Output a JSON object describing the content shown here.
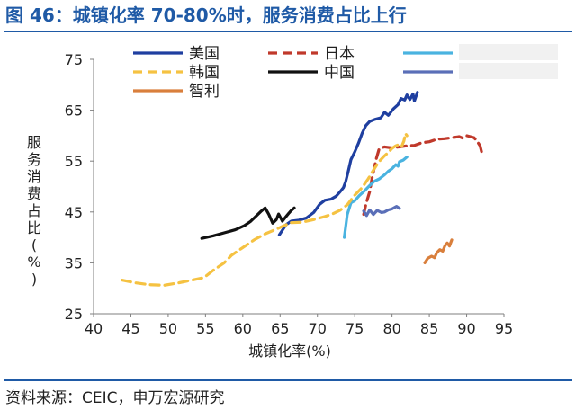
{
  "header": {
    "title": "图 46：城镇化率 70-80%时，服务消费占比上行"
  },
  "footer": {
    "source": "资料来源：CEIC，申万宏源研究"
  },
  "chart_data": {
    "type": "line",
    "xlabel": "城镇化率(%)",
    "ylabel": "服务消费占比(%)",
    "xlim": [
      40,
      95
    ],
    "ylim": [
      25,
      75
    ],
    "xticks": [
      40,
      45,
      50,
      55,
      60,
      65,
      70,
      75,
      80,
      85,
      90,
      95
    ],
    "yticks": [
      25,
      35,
      45,
      55,
      65,
      75
    ],
    "grid": false,
    "legend_position": "top",
    "series": [
      {
        "name": "美国",
        "color": "#1f3fa0",
        "dash": "solid",
        "points": [
          [
            64.9,
            40.5
          ],
          [
            65.8,
            42.5
          ],
          [
            66.5,
            43.2
          ],
          [
            67.5,
            43.4
          ],
          [
            68.5,
            43.8
          ],
          [
            69.5,
            44.9
          ],
          [
            70.3,
            46.5
          ],
          [
            71.0,
            47.3
          ],
          [
            71.8,
            47.5
          ],
          [
            72.5,
            48.1
          ],
          [
            73.0,
            48.9
          ],
          [
            73.5,
            49.8
          ],
          [
            73.8,
            51.0
          ],
          [
            74.1,
            52.8
          ],
          [
            74.5,
            55.3
          ],
          [
            75.0,
            56.8
          ],
          [
            75.5,
            58.5
          ],
          [
            76.0,
            60.5
          ],
          [
            76.5,
            62.0
          ],
          [
            77.0,
            62.8
          ],
          [
            77.7,
            63.2
          ],
          [
            78.5,
            63.5
          ],
          [
            79.0,
            64.6
          ],
          [
            79.5,
            64.0
          ],
          [
            80.2,
            65.3
          ],
          [
            80.8,
            66.1
          ],
          [
            81.2,
            67.3
          ],
          [
            81.7,
            67.0
          ],
          [
            82.0,
            68.0
          ],
          [
            82.4,
            67.1
          ],
          [
            82.8,
            68.2
          ],
          [
            83.0,
            66.8
          ],
          [
            83.4,
            68.5
          ]
        ]
      },
      {
        "name": "日本",
        "color": "#c0392b",
        "dash": "dash",
        "points": [
          [
            76.2,
            44.5
          ],
          [
            76.5,
            46.5
          ],
          [
            77.0,
            49.0
          ],
          [
            77.3,
            51.5
          ],
          [
            77.6,
            53.5
          ],
          [
            77.9,
            55.5
          ],
          [
            78.3,
            57.5
          ],
          [
            79.0,
            57.8
          ],
          [
            80.0,
            57.6
          ],
          [
            81.0,
            57.8
          ],
          [
            82.0,
            58.0
          ],
          [
            83.0,
            58.1
          ],
          [
            84.0,
            58.6
          ],
          [
            85.0,
            58.8
          ],
          [
            86.0,
            59.3
          ],
          [
            87.0,
            59.4
          ],
          [
            88.0,
            59.6
          ],
          [
            89.0,
            59.8
          ],
          [
            89.5,
            59.5
          ],
          [
            90.0,
            60.0
          ],
          [
            90.5,
            59.8
          ],
          [
            91.0,
            59.6
          ],
          [
            91.4,
            58.9
          ],
          [
            91.8,
            58.0
          ],
          [
            92.1,
            56.2
          ]
        ]
      },
      {
        "name": "",
        "color": "#4ab3e0",
        "dash": "solid",
        "points": [
          [
            73.6,
            40.0
          ],
          [
            74.0,
            44.5
          ],
          [
            74.5,
            46.8
          ],
          [
            75.0,
            47.2
          ],
          [
            75.6,
            48.2
          ],
          [
            76.2,
            49.0
          ],
          [
            77.0,
            50.2
          ],
          [
            77.6,
            51.0
          ],
          [
            78.3,
            51.5
          ],
          [
            79.0,
            52.3
          ],
          [
            79.5,
            53.0
          ],
          [
            80.0,
            53.5
          ],
          [
            80.5,
            54.3
          ],
          [
            80.8,
            54.0
          ],
          [
            81.0,
            54.9
          ],
          [
            81.5,
            55.2
          ],
          [
            82.0,
            55.8
          ]
        ]
      },
      {
        "name": "韩国",
        "color": "#f5c242",
        "dash": "dash",
        "points": [
          [
            43.8,
            31.6
          ],
          [
            45.5,
            31.1
          ],
          [
            47.5,
            30.7
          ],
          [
            49.5,
            30.6
          ],
          [
            51.5,
            31.1
          ],
          [
            53.5,
            31.7
          ],
          [
            54.8,
            32.1
          ],
          [
            56.0,
            33.5
          ],
          [
            57.5,
            35.0
          ],
          [
            58.5,
            36.5
          ],
          [
            60.0,
            38.0
          ],
          [
            61.5,
            39.5
          ],
          [
            63.0,
            40.7
          ],
          [
            64.5,
            41.6
          ],
          [
            65.5,
            42.3
          ],
          [
            66.5,
            42.9
          ],
          [
            68.0,
            43.0
          ],
          [
            69.5,
            43.5
          ],
          [
            71.0,
            44.1
          ],
          [
            72.0,
            44.6
          ],
          [
            73.0,
            45.3
          ],
          [
            74.0,
            46.4
          ],
          [
            75.0,
            48.3
          ],
          [
            76.0,
            49.8
          ],
          [
            76.8,
            51.5
          ],
          [
            77.5,
            53.2
          ],
          [
            78.2,
            54.8
          ],
          [
            78.9,
            55.9
          ],
          [
            79.5,
            56.7
          ],
          [
            80.0,
            57.5
          ],
          [
            80.5,
            58.0
          ],
          [
            81.0,
            58.3
          ],
          [
            81.3,
            57.9
          ],
          [
            81.6,
            59.0
          ],
          [
            81.8,
            60.4
          ],
          [
            82.0,
            60.0
          ]
        ]
      },
      {
        "name": "中国",
        "color": "#111111",
        "dash": "solid",
        "points": [
          [
            54.5,
            39.8
          ],
          [
            56.0,
            40.3
          ],
          [
            57.5,
            40.9
          ],
          [
            59.0,
            41.5
          ],
          [
            60.2,
            42.3
          ],
          [
            61.0,
            43.1
          ],
          [
            61.8,
            44.2
          ],
          [
            62.5,
            45.2
          ],
          [
            63.0,
            45.8
          ],
          [
            63.5,
            44.5
          ],
          [
            64.0,
            42.8
          ],
          [
            64.5,
            43.5
          ],
          [
            64.8,
            44.6
          ],
          [
            65.3,
            43.2
          ],
          [
            65.8,
            44.1
          ],
          [
            66.2,
            44.8
          ],
          [
            66.5,
            45.3
          ],
          [
            66.9,
            45.8
          ]
        ]
      },
      {
        "name": "",
        "color": "#5a6fb8",
        "dash": "solid",
        "points": [
          [
            76.2,
            45.2
          ],
          [
            76.6,
            44.3
          ],
          [
            77.0,
            45.4
          ],
          [
            77.5,
            44.5
          ],
          [
            78.0,
            45.3
          ],
          [
            78.6,
            44.9
          ],
          [
            79.0,
            45.0
          ],
          [
            79.5,
            45.4
          ],
          [
            80.0,
            45.6
          ],
          [
            80.6,
            46.1
          ],
          [
            81.0,
            45.7
          ]
        ]
      },
      {
        "name": "智利",
        "color": "#d97f3c",
        "dash": "solid",
        "points": [
          [
            84.4,
            35.0
          ],
          [
            84.8,
            35.9
          ],
          [
            85.3,
            36.3
          ],
          [
            85.7,
            36.0
          ],
          [
            86.0,
            37.0
          ],
          [
            86.4,
            37.6
          ],
          [
            86.8,
            37.3
          ],
          [
            87.1,
            38.4
          ],
          [
            87.4,
            38.9
          ],
          [
            87.7,
            38.3
          ],
          [
            88.0,
            39.5
          ]
        ]
      }
    ]
  }
}
